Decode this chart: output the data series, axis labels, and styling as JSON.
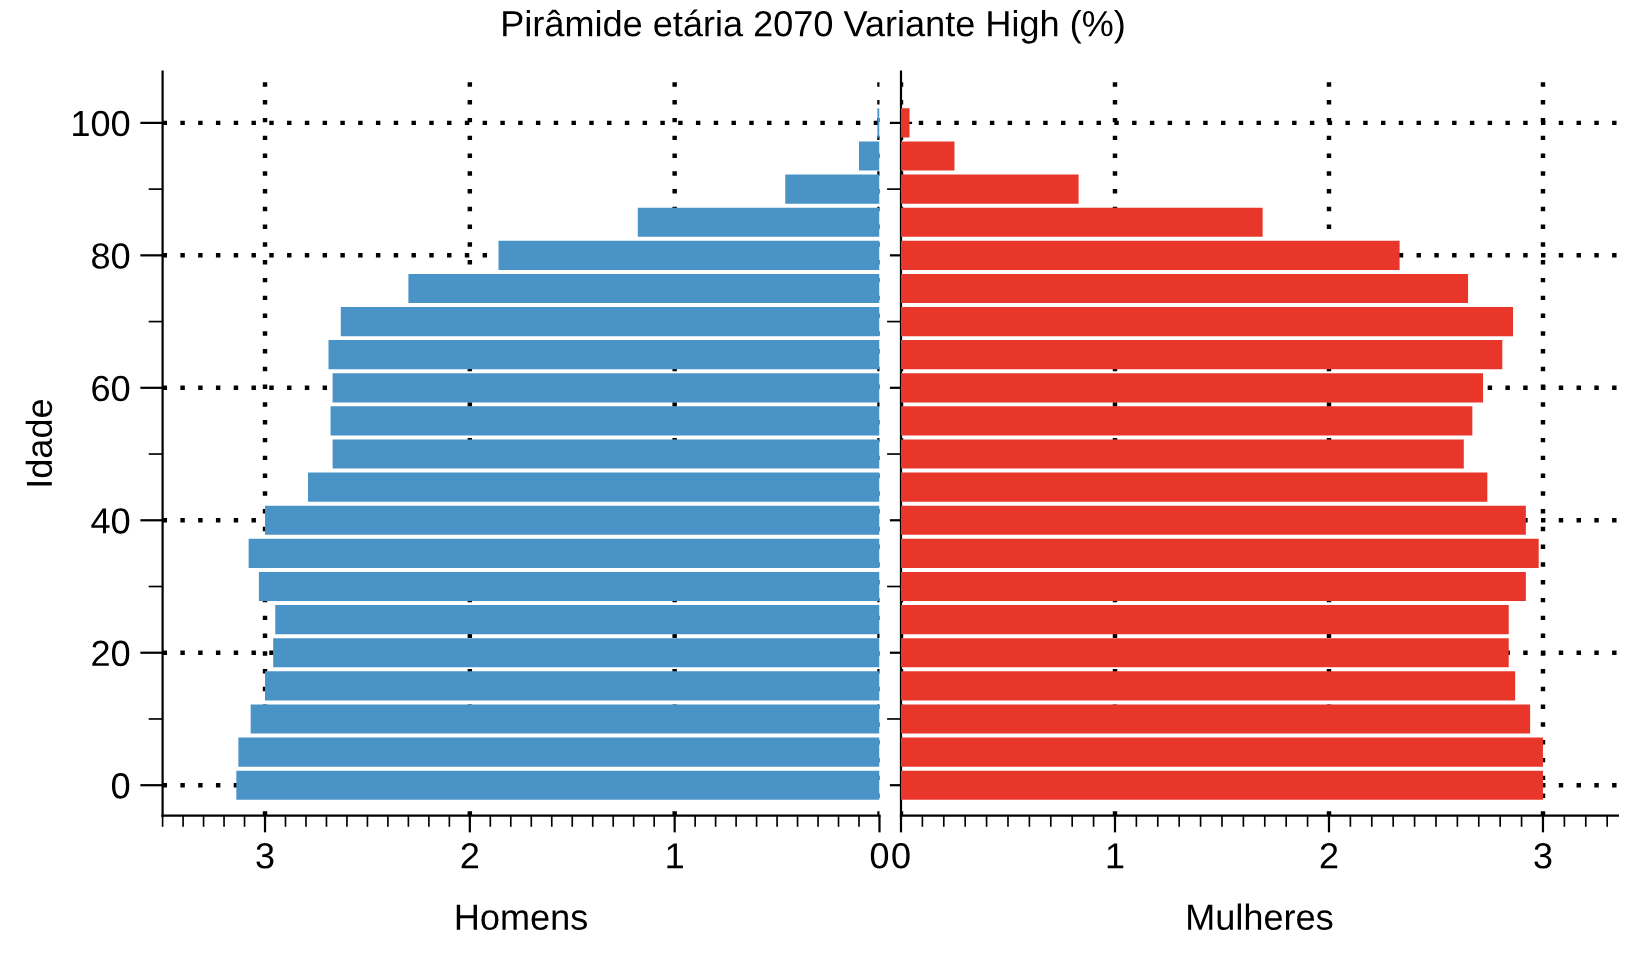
{
  "chart_data": [
    {
      "type": "bar",
      "orientation": "horizontal",
      "title": "Pirâmide etária 2070 Variante High (%)",
      "xlabel": "Homens",
      "ylabel": "Idade",
      "categories": [
        "100",
        null,
        null,
        null,
        "80",
        null,
        null,
        null,
        "60",
        null,
        null,
        null,
        "40",
        null,
        null,
        null,
        "20",
        null,
        null,
        null,
        "0"
      ],
      "series": [
        {
          "color": "#4a93c6",
          "values": [
            0.01,
            0.1,
            0.46,
            1.18,
            1.86,
            2.3,
            2.63,
            2.69,
            2.67,
            2.68,
            2.67,
            2.79,
            3.0,
            3.08,
            3.03,
            2.95,
            2.96,
            3.0,
            3.07,
            3.13,
            3.14
          ]
        }
      ],
      "xlim": [
        3.5,
        0
      ],
      "xticks": [
        0,
        1,
        2,
        3
      ],
      "grid": true,
      "legend": false
    },
    {
      "type": "bar",
      "orientation": "horizontal",
      "xlabel": "Mulheres",
      "categories": [
        "100",
        null,
        null,
        null,
        "80",
        null,
        null,
        null,
        "60",
        null,
        null,
        null,
        "40",
        null,
        null,
        null,
        "20",
        null,
        null,
        null,
        "0"
      ],
      "series": [
        {
          "color": "#e8372a",
          "values": [
            0.04,
            0.25,
            0.83,
            1.69,
            2.33,
            2.65,
            2.86,
            2.81,
            2.72,
            2.67,
            2.63,
            2.74,
            2.92,
            2.98,
            2.92,
            2.84,
            2.84,
            2.87,
            2.94,
            3.0,
            3.0
          ]
        }
      ],
      "xlim": [
        0,
        3.35
      ],
      "xticks": [
        0,
        1,
        2,
        3
      ],
      "grid": true,
      "legend": false,
      "tick_labels": "x"
    }
  ]
}
